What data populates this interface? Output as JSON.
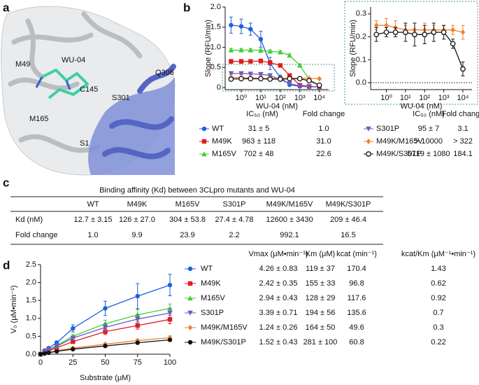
{
  "panel_labels": [
    "a",
    "b",
    "c",
    "d"
  ],
  "structure": {
    "labels": [
      "M49",
      "WU-04",
      "C145",
      "Q306",
      "S301",
      "M165",
      "S1"
    ]
  },
  "chart_data": [
    {
      "type": "line",
      "x_label": "WU-04 (nM)",
      "y_label": "Slope (RFU/min)",
      "log_x": true,
      "x": [
        0.3,
        1,
        3,
        10,
        30,
        100,
        300,
        1000,
        3000,
        10000
      ],
      "xlim": [
        0.15,
        30000
      ],
      "xticks": [
        {
          "value": 1,
          "label": "10⁰"
        },
        {
          "value": 10,
          "label": "10¹"
        },
        {
          "value": 100,
          "label": "10²"
        },
        {
          "value": 1000,
          "label": "10³"
        },
        {
          "value": 10000,
          "label": "10⁴"
        }
      ],
      "ylim": [
        -0.05,
        2
      ],
      "yticks": [
        0,
        0.5,
        {
          "value": 1,
          "label": "1.0"
        },
        1.5,
        {
          "value": 2,
          "label": "2.0"
        }
      ],
      "table_headers": [
        "IC₅₀ (nM)",
        "Fold change"
      ],
      "series": [
        {
          "name": "WT",
          "color": "#1f5fe0",
          "marker": "circle",
          "values": [
            1.55,
            1.52,
            1.45,
            1.2,
            0.6,
            0.25,
            0.07,
            0.03,
            0.02,
            0.02
          ],
          "errors": [
            0.2,
            0.18,
            0.15,
            0.2,
            0.15,
            0.06,
            0.02,
            0.01,
            0.01,
            0.01
          ],
          "ic50": "31 ± 5",
          "fold_change": "1.0"
        },
        {
          "name": "M49K",
          "color": "#e41a1c",
          "marker": "square",
          "values": [
            0.65,
            0.65,
            0.65,
            0.66,
            0.62,
            0.55,
            0.3,
            0.06,
            0.03,
            0.02
          ],
          "errors": [
            0.05,
            0.05,
            0.04,
            0.05,
            0.05,
            0.04,
            0.03,
            0.02,
            0.01,
            0.01
          ],
          "ic50": "963 ± 118",
          "fold_change": "31.0"
        },
        {
          "name": "M165V",
          "color": "#3fcf33",
          "marker": "triangle",
          "values": [
            0.93,
            0.93,
            0.93,
            0.92,
            0.9,
            0.88,
            0.8,
            0.55,
            0.2,
            0.05
          ],
          "errors": [
            0.04,
            0.04,
            0.04,
            0.04,
            0.04,
            0.04,
            0.04,
            0.04,
            0.03,
            0.02
          ],
          "ic50": "702 ± 48",
          "fold_change": "22.6"
        },
        {
          "name": "S301P",
          "color": "#6b5bc4",
          "marker": "triangle-down",
          "values": [
            0.35,
            0.35,
            0.34,
            0.33,
            0.3,
            0.2,
            0.1,
            0.04,
            0.02,
            0.02
          ],
          "errors": [
            0.03,
            0.03,
            0.03,
            0.03,
            0.03,
            0.03,
            0.02,
            0.01,
            0.01,
            0.01
          ],
          "ic50": "95 ± 7",
          "fold_change": "3.1"
        },
        {
          "name": "M49K/M165V",
          "color": "#f08030",
          "marker": "diamond",
          "values": [
            0.25,
            0.25,
            0.24,
            0.23,
            0.23,
            0.23,
            0.23,
            0.23,
            0.23,
            0.22
          ],
          "errors": [
            0.02,
            0.02,
            0.02,
            0.02,
            0.02,
            0.02,
            0.02,
            0.02,
            0.02,
            0.02
          ],
          "ic50": "> 10000",
          "fold_change": "> 322"
        },
        {
          "name": "M49K/S301P",
          "color": "#111111",
          "marker": "open-circle",
          "values": [
            0.21,
            0.22,
            0.22,
            0.22,
            0.21,
            0.21,
            0.22,
            0.22,
            0.17,
            0.06
          ],
          "errors": [
            0.02,
            0.02,
            0.02,
            0.02,
            0.02,
            0.02,
            0.02,
            0.02,
            0.02,
            0.02
          ],
          "ic50": "5719 ± 1080",
          "fold_change": "184.1"
        }
      ]
    },
    {
      "type": "line",
      "x_label": "WU-04 (nM)",
      "y_label": "Slope (RFU/min)",
      "log_x": true,
      "x": [
        0.3,
        1,
        3,
        10,
        30,
        100,
        300,
        1000,
        3000,
        10000
      ],
      "xlim": [
        0.15,
        30000
      ],
      "xticks": [
        {
          "value": 1,
          "label": "10⁰"
        },
        {
          "value": 10,
          "label": "10¹"
        },
        {
          "value": 100,
          "label": "10²"
        },
        {
          "value": 1000,
          "label": "10³"
        },
        {
          "value": 10000,
          "label": "10⁴"
        }
      ],
      "ylim": [
        -0.03,
        0.33
      ],
      "yticks": [
        {
          "value": 0,
          "label": "0.0"
        },
        0.1,
        0.2,
        0.3
      ],
      "zero_line": true,
      "series": [
        {
          "color": "#f08030",
          "marker": "diamond",
          "values": [
            0.25,
            0.25,
            0.24,
            0.23,
            0.23,
            0.23,
            0.23,
            0.23,
            0.23,
            0.22
          ],
          "errors": [
            0.02,
            0.03,
            0.03,
            0.02,
            0.03,
            0.03,
            0.02,
            0.02,
            0.02,
            0.03
          ]
        },
        {
          "color": "#111111",
          "marker": "open-circle",
          "values": [
            0.21,
            0.22,
            0.22,
            0.22,
            0.21,
            0.21,
            0.22,
            0.22,
            0.17,
            0.06
          ],
          "errors": [
            0.03,
            0.02,
            0.02,
            0.04,
            0.05,
            0.04,
            0.04,
            0.03,
            0.02,
            0.03
          ]
        }
      ]
    },
    {
      "type": "line",
      "x_label": "Substrate (μM)",
      "y_label": "V₀ (μM•min⁻¹)",
      "log_x": false,
      "x": [
        0,
        3.125,
        6.25,
        12.5,
        25,
        50,
        75,
        100
      ],
      "xlim": [
        0,
        100
      ],
      "xticks": [
        0,
        25,
        50,
        75,
        100
      ],
      "ylim": [
        0,
        2.5
      ],
      "yticks": [
        {
          "value": 0,
          "label": "0.0"
        },
        0.5,
        {
          "value": 1,
          "label": "1.0"
        },
        1.5,
        {
          "value": 2,
          "label": "2.0"
        },
        2.5
      ],
      "table_headers": [
        "Vmax (μM•min⁻¹)",
        "Km (μM)",
        "kcat (min⁻¹)",
        "kcat/Km (μM⁻¹•min⁻¹)"
      ],
      "series": [
        {
          "name": "WT",
          "color": "#1f5fe0",
          "marker": "circle",
          "values": [
            0,
            0.1,
            0.17,
            0.32,
            0.72,
            1.28,
            1.62,
            1.93
          ],
          "errors": [
            0,
            0.02,
            0.03,
            0.05,
            0.1,
            0.2,
            0.35,
            0.3
          ],
          "vmax": "4.26 ± 0.83",
          "km": "119 ± 37",
          "kcat": "170.4",
          "kcat_km": "1.43"
        },
        {
          "name": "M49K",
          "color": "#e41a1c",
          "marker": "square",
          "values": [
            0,
            0.05,
            0.09,
            0.18,
            0.35,
            0.63,
            0.8,
            0.97
          ],
          "errors": [
            0,
            0.01,
            0.02,
            0.03,
            0.05,
            0.08,
            0.1,
            0.12
          ],
          "vmax": "2.42 ± 0.35",
          "km": "155 ± 33",
          "kcat": "96.8",
          "kcat_km": "0.62"
        },
        {
          "name": "M165V",
          "color": "#3fcf33",
          "marker": "triangle",
          "values": [
            0,
            0.07,
            0.13,
            0.24,
            0.5,
            0.85,
            1.1,
            1.28
          ],
          "errors": [
            0,
            0.01,
            0.02,
            0.03,
            0.05,
            0.1,
            0.15,
            0.12
          ],
          "vmax": "2.94 ± 0.43",
          "km": "128 ± 29",
          "kcat": "117.6",
          "kcat_km": "0.92"
        },
        {
          "name": "S301P",
          "color": "#6b5bc4",
          "marker": "triangle-down",
          "values": [
            0,
            0.06,
            0.12,
            0.22,
            0.45,
            0.75,
            0.98,
            1.15
          ],
          "errors": [
            0,
            0.01,
            0.02,
            0.03,
            0.05,
            0.1,
            0.12,
            0.12
          ],
          "vmax": "3.39 ± 0.71",
          "km": "194 ± 56",
          "kcat": "135.6",
          "kcat_km": "0.7"
        },
        {
          "name": "M49K/M165V",
          "color": "#f08030",
          "marker": "diamond",
          "values": [
            0,
            0.03,
            0.05,
            0.1,
            0.17,
            0.28,
            0.38,
            0.46
          ],
          "errors": [
            0,
            0.01,
            0.01,
            0.02,
            0.02,
            0.03,
            0.04,
            0.05
          ],
          "vmax": "1.24 ± 0.26",
          "km": "164 ± 50",
          "kcat": "49.6",
          "kcat_km": "0.3"
        },
        {
          "name": "M49K/S301P",
          "color": "#111111",
          "marker": "black-circle",
          "values": [
            0,
            0.02,
            0.04,
            0.08,
            0.14,
            0.23,
            0.32,
            0.4
          ],
          "errors": [
            0,
            0.01,
            0.01,
            0.01,
            0.02,
            0.03,
            0.03,
            0.04
          ],
          "vmax": "1.52 ± 0.43",
          "km": "281 ± 100",
          "kcat": "60.8",
          "kcat_km": "0.22"
        }
      ]
    }
  ],
  "binding_table": {
    "title": "Binding affinity (Kd) between 3CLpro mutants and WU-04",
    "columns": [
      "WT",
      "M49K",
      "M165V",
      "S301P",
      "M49K/M165V",
      "M49K/S301P"
    ],
    "rows": [
      {
        "label": "Kd (nM)",
        "cells": [
          "12.7 ± 3.15",
          "126 ± 27.0",
          "304 ± 53.8",
          "27.4 ± 4.78",
          "12600 ± 3430",
          "209 ± 46.4"
        ]
      },
      {
        "label": "Fold change",
        "cells": [
          "1.0",
          "9.9",
          "23.9",
          "2.2",
          "992.1",
          "16.5"
        ]
      }
    ]
  }
}
